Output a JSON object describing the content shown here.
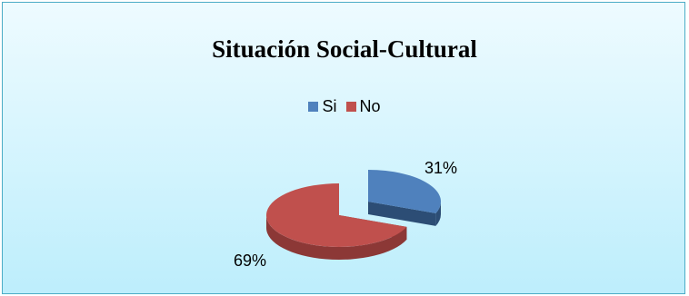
{
  "chart_data": {
    "type": "pie",
    "title": "Situación Social-Cultural",
    "categories": [
      "Si",
      "No"
    ],
    "values": [
      31,
      69
    ],
    "labels": [
      "31%",
      "69%"
    ],
    "colors": [
      "#4f81bd",
      "#c0504d"
    ],
    "side_colors": [
      "#2c4d75",
      "#8c3836"
    ],
    "legend_position": "top",
    "style": "3d-exploded"
  }
}
